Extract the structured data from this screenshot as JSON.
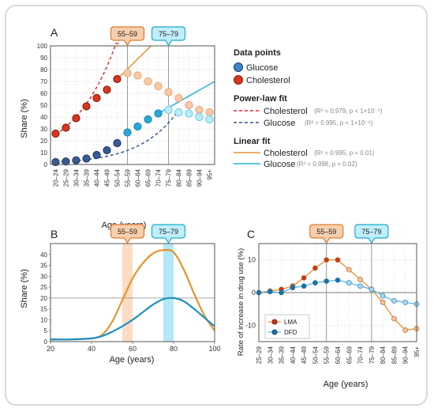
{
  "colors": {
    "glucose": "#2f5f9e",
    "glucose_fill": "#3d85c6",
    "cholesterol": "#d9361e",
    "power_chol": "#e8232b",
    "power_glu": "#2f4f8f",
    "linear_chol": "#e8922e",
    "linear_glu": "#2ab0d6",
    "callout_orange_bg": "#f7cfae",
    "callout_orange_border": "#e07a2e",
    "callout_cyan_bg": "#bfeef8",
    "callout_cyan_border": "#1faad0",
    "band_orange": "#fbd6b8",
    "band_cyan": "#a6e4f6"
  },
  "chart_data": [
    {
      "panel": "A",
      "type": "scatter",
      "ylabel": "Share (%)",
      "xlabel": "Age (years)",
      "ylim": [
        0,
        100
      ],
      "yticks": [
        0,
        10,
        20,
        30,
        40,
        50,
        60,
        70,
        80,
        90,
        100
      ],
      "categories": [
        "20–24",
        "25–29",
        "30–34",
        "35–39",
        "40–44",
        "45–49",
        "50–54",
        "55–59",
        "60–64",
        "65–69",
        "70–74",
        "75–79",
        "80–84",
        "85–89",
        "90–94",
        "95+"
      ],
      "callouts": [
        "55–59",
        "75–79"
      ],
      "series": [
        {
          "name": "Glucose",
          "values": [
            2,
            2.5,
            3.5,
            5,
            8,
            12,
            18,
            27,
            32,
            38,
            43,
            46,
            44,
            43,
            40,
            38
          ],
          "fit_until": 11
        },
        {
          "name": "Cholesterol",
          "values": [
            26,
            31,
            39,
            49,
            56,
            63,
            72,
            77,
            75,
            70,
            66,
            61,
            56,
            50,
            46,
            44
          ],
          "fit_until": 7
        }
      ],
      "legend": {
        "points_title": "Data points",
        "points": [
          "Glucose",
          "Cholesterol"
        ],
        "power_title": "Power-law fit",
        "power": [
          {
            "name": "Cholesterol",
            "stat": "(R² = 0.979, p < 1×10⁻⁴)"
          },
          {
            "name": "Glucose",
            "stat": "(R² = 0.995, p < 1×10⁻⁶)"
          }
        ],
        "linear_title": "Linear fit",
        "linear": [
          {
            "name": "Cholesterol",
            "stat": "(R² = 0.995, p = 0.01)"
          },
          {
            "name": "Glucose",
            "stat": "(R² = 0.998, p = 0.02)"
          }
        ]
      }
    },
    {
      "panel": "B",
      "type": "line",
      "ylabel": "Share (%)",
      "xlabel": "Age (years)",
      "xlim": [
        20,
        100
      ],
      "ylim": [
        0,
        45
      ],
      "xticks": [
        20,
        40,
        60,
        80,
        100
      ],
      "yticks": [
        0,
        5,
        10,
        15,
        20,
        25,
        30,
        35,
        40
      ],
      "callouts": [
        "55–59",
        "75–79"
      ],
      "bands": [
        [
          55,
          60
        ],
        [
          75,
          80
        ]
      ],
      "series": [
        {
          "name": "Cholesterol",
          "x": [
            20,
            30,
            40,
            45,
            50,
            55,
            60,
            65,
            70,
            75,
            80,
            85,
            90,
            95,
            100
          ],
          "values": [
            1,
            1,
            1.5,
            3,
            9,
            19,
            29,
            36,
            40.5,
            42,
            41,
            33,
            22,
            12,
            5
          ]
        },
        {
          "name": "Glucose",
          "x": [
            20,
            30,
            40,
            45,
            50,
            55,
            60,
            65,
            70,
            75,
            80,
            85,
            90,
            95,
            100
          ],
          "values": [
            1,
            1,
            1.5,
            2.5,
            4.5,
            7,
            10,
            13.5,
            17,
            19.5,
            20,
            18.5,
            15,
            11,
            7
          ]
        }
      ]
    },
    {
      "panel": "C",
      "type": "line",
      "ylabel": "Rate of increase in drug use (%)",
      "xlabel": "Age (years)",
      "ylim": [
        -15,
        15
      ],
      "yticks": [
        -10,
        0,
        10
      ],
      "categories": [
        "25–29",
        "30–34",
        "35–39",
        "40–44",
        "45–49",
        "50–54",
        "55–59",
        "60–64",
        "65–69",
        "70–74",
        "75–79",
        "80–84",
        "85–89",
        "90–94",
        "95+"
      ],
      "callouts": [
        "55–59",
        "75–79"
      ],
      "series": [
        {
          "name": "LMA",
          "values": [
            0,
            0.5,
            1,
            2,
            4.5,
            7.5,
            10,
            10,
            7,
            4,
            1,
            -3,
            -8,
            -11.5,
            -11
          ]
        },
        {
          "name": "DFD",
          "values": [
            0,
            0.3,
            0,
            1.5,
            2,
            3,
            3.5,
            3.8,
            3,
            2,
            1,
            -1,
            -2.5,
            -3,
            -3.5
          ]
        }
      ]
    }
  ],
  "panel_labels": [
    "A",
    "B",
    "C"
  ]
}
